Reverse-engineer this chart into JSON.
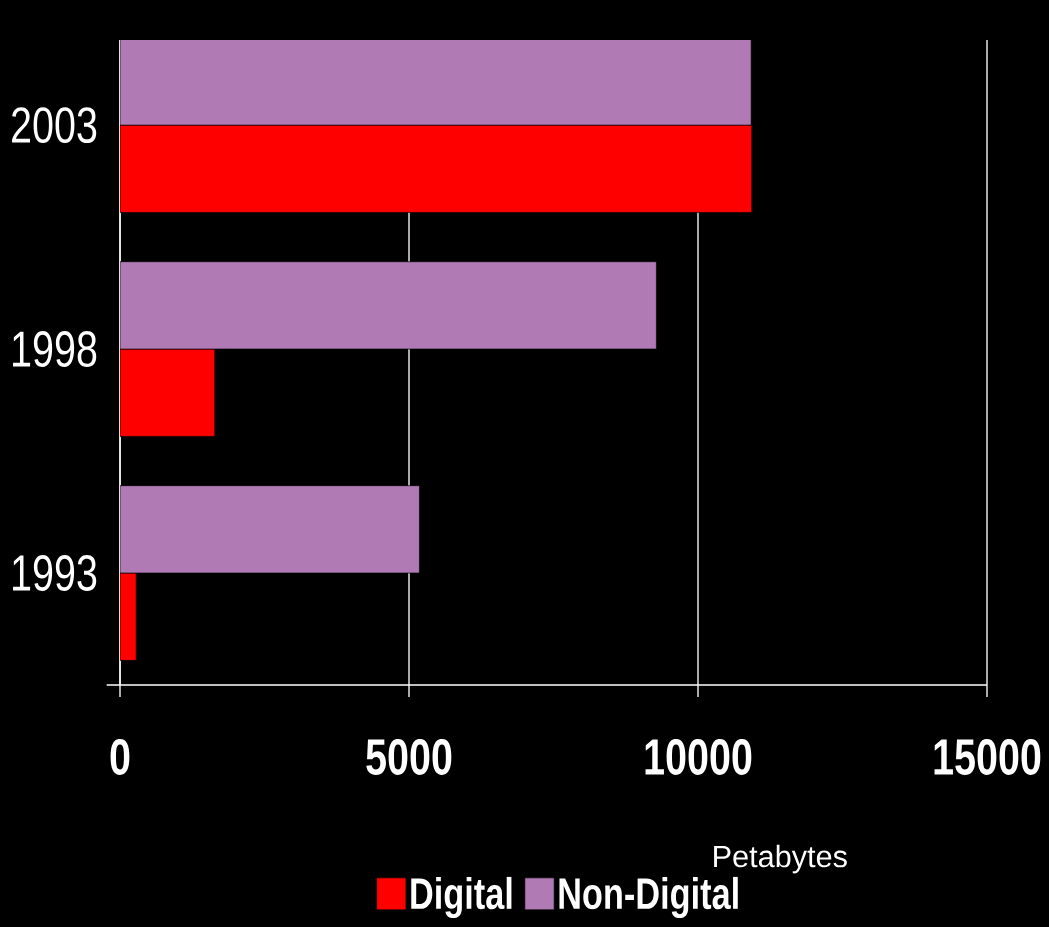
{
  "chart_data": {
    "type": "bar",
    "orientation": "horizontal",
    "categories": [
      "2003",
      "1998",
      "1993"
    ],
    "series": [
      {
        "name": "Digital",
        "color": "#ff0000",
        "values": [
          10930,
          1640,
          280
        ]
      },
      {
        "name": "Non-Digital",
        "color": "#b07ab5",
        "values": [
          10920,
          9280,
          5180
        ]
      }
    ],
    "xlim": [
      0,
      15000
    ],
    "xticks": [
      0,
      5000,
      10000,
      15000
    ],
    "xlabel": "Petabytes",
    "grid": "x",
    "legend": "bottom"
  }
}
